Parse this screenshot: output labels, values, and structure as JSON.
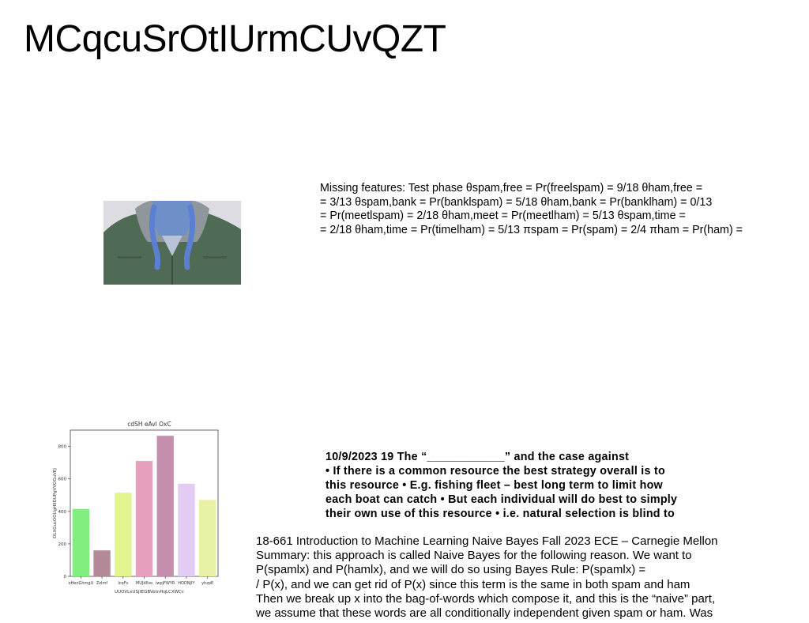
{
  "title": "MCqcuSrOtIUrmCUvQZT",
  "missing_features": {
    "lines": [
      "Missing features: Test phase θspam,free = Pr(freelspam) = 9/18 θham,free =",
      "= 3/13 θspam,bank = Pr(banklspam) = 5/18 θham,bank = Pr(banklham) = 0/13",
      "= Pr(meetlspam) = 2/18 θham,meet = Pr(meetlham) = 5/13 θspam,time =",
      "= 2/18 θham,time = Pr(timelham) = 5/13 πspam = Pr(spam) = 2/4 πham = Pr(ham) ="
    ]
  },
  "tragedy": {
    "lines": [
      "10/9/2023 19 The “____________” and the case against",
      "• If there is a common resource the best strategy overall is to",
      "this resource • E.g. fishing fleet – best long term to limit how",
      "each boat can catch • But each individual will do best to simply",
      "their own use of this resource • i.e. natural selection is blind to"
    ]
  },
  "summary": {
    "lines": [
      "18-661 Introduction to Machine Learning Naive Bayes Fall 2023 ECE – Carnegie Mellon",
      "Summary: this approach is called Naive Bayes for the following reason. We want to",
      "P(spamlx) and P(hamlx), and we will do so using Bayes Rule: P(spamlx) =",
      "/ P(x), and we can get rid of P(x) since this term is the same in both spam and ham",
      "Then we break up x into the bag-of-words which compose it, and this is the “naive” part,",
      "we assume that these words are all conditionally independent given spam or ham. Was"
    ]
  },
  "chart_data": {
    "type": "bar",
    "title": "cdSH eAvl OxC",
    "xlabel": "UUOVLxUSjtEGBVotnHqLCXWCc",
    "ylabel": "DLXGucOOUgHIIDUPgVVOGuVEj",
    "categories": [
      "oHenGhmgU",
      "ZzImf",
      "IcqFs",
      "MUJkEso",
      "iwpjFWYR",
      "HODNJIY",
      "yhzpE"
    ],
    "values": [
      415,
      160,
      515,
      710,
      865,
      570,
      470
    ],
    "colors": [
      "#80ef80",
      "#b48a99",
      "#e3f58f",
      "#e8a0bf",
      "#c48fad",
      "#e2ccf3",
      "#e9f1a6"
    ],
    "yticks": [
      0,
      200,
      400,
      600,
      800
    ],
    "ylim": [
      0,
      900
    ],
    "grid": false
  }
}
